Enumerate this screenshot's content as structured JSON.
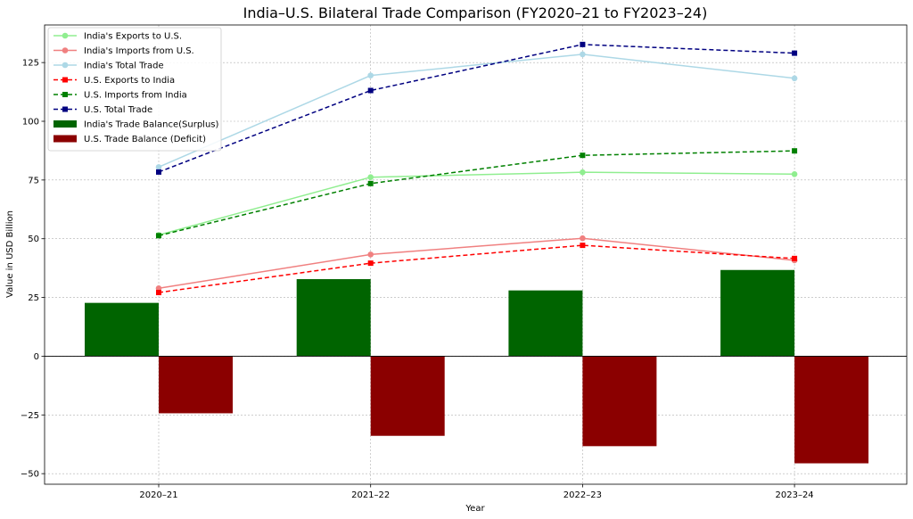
{
  "chart_data": {
    "type": "bar",
    "title": "India–U.S. Bilateral Trade Comparison (FY2020–21 to FY2023–24)",
    "xlabel": "Year",
    "ylabel": "Value in USD Billion",
    "categories": [
      "2020–21",
      "2021–22",
      "2022–23",
      "2023–24"
    ],
    "ylim": [
      -54.5,
      141
    ],
    "yticks": [
      -50,
      -25,
      0,
      25,
      50,
      75,
      100,
      125
    ],
    "grid": true,
    "legend_position": "top-left",
    "line_series": [
      {
        "name": "India's Exports to U.S.",
        "values": [
          51.6,
          76.2,
          78.3,
          77.5
        ],
        "color": "#90ee90",
        "marker": "circle",
        "dashed": false
      },
      {
        "name": "India's Imports from U.S.",
        "values": [
          28.9,
          43.3,
          50.2,
          40.8
        ],
        "color": "#f08080",
        "marker": "circle",
        "dashed": false
      },
      {
        "name": "India's Total Trade",
        "values": [
          80.5,
          119.5,
          128.5,
          118.3
        ],
        "color": "#add8e6",
        "marker": "circle",
        "dashed": false
      },
      {
        "name": "U.S. Exports to India",
        "values": [
          27.1,
          39.6,
          47.2,
          41.6
        ],
        "color": "#ff0000",
        "marker": "square",
        "dashed": true
      },
      {
        "name": "U.S. Imports from India",
        "values": [
          51.3,
          73.5,
          85.5,
          87.4
        ],
        "color": "#008000",
        "marker": "square",
        "dashed": true
      },
      {
        "name": "U.S. Total Trade",
        "values": [
          78.4,
          113.1,
          132.7,
          129.0
        ],
        "color": "#000080",
        "marker": "square",
        "dashed": true
      }
    ],
    "bar_series": [
      {
        "name": "India's Trade Balance(Surplus)",
        "values": [
          22.7,
          32.8,
          28.0,
          36.7
        ],
        "color": "#006400"
      },
      {
        "name": "U.S. Trade Balance (Deficit)",
        "values": [
          -24.3,
          -33.9,
          -38.3,
          -45.6
        ],
        "color": "#8b0000"
      }
    ]
  }
}
